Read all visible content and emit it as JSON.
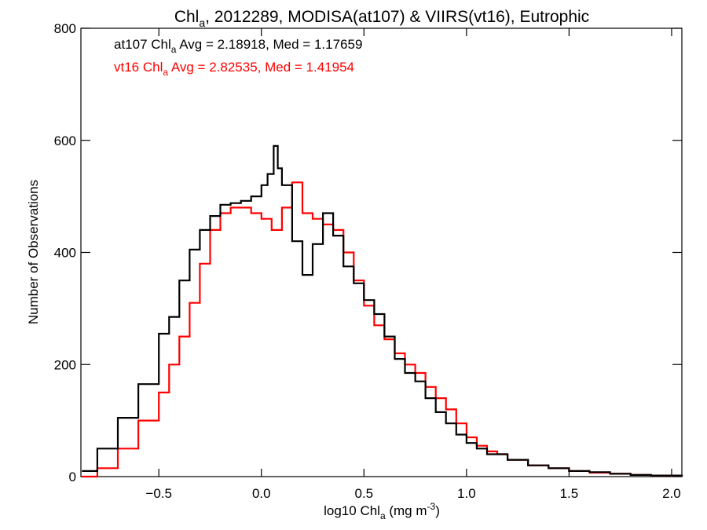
{
  "chart_data": {
    "type": "line",
    "step": true,
    "title": {
      "base": "Chl",
      "sub": "a",
      "rest": ", 2012289, MODISA(at107) & VIIRS(vt16), Eutrophic"
    },
    "xlabel": {
      "base": "log10 Chl",
      "sub": "a",
      "rest": " (mg m",
      "sup": "-3",
      "end": ")"
    },
    "ylabel": "Number of Observations",
    "xlim": [
      -0.88,
      2.05
    ],
    "ylim": [
      0,
      800
    ],
    "x_ticks": [
      -0.5,
      0.0,
      0.5,
      1.0,
      1.5,
      2.0
    ],
    "x_tick_labels": [
      "−0.5",
      "0.0",
      "0.5",
      "1.0",
      "1.5",
      "2.0"
    ],
    "y_ticks": [
      0,
      200,
      400,
      600,
      800
    ],
    "y_tick_labels": [
      "0",
      "200",
      "400",
      "600",
      "800"
    ],
    "grid": false,
    "annotations": [
      {
        "id": "at107",
        "color": "#000000",
        "prefix": "at107 Chl",
        "sub": "a",
        "suffix": " Avg = 2.18918, Med = 1.17659"
      },
      {
        "id": "vt16",
        "color": "#ff0000",
        "prefix": "vt16 Chl",
        "sub": "a",
        "suffix": " Avg = 2.82535, Med = 1.41954"
      }
    ],
    "series": [
      {
        "key": "at107",
        "color": "#000000",
        "x": [
          -0.875,
          -0.8,
          -0.7,
          -0.6,
          -0.5,
          -0.45,
          -0.4,
          -0.35,
          -0.3,
          -0.25,
          -0.2,
          -0.15,
          -0.1,
          -0.05,
          0.0,
          0.03,
          0.06,
          0.08,
          0.1,
          0.15,
          0.2,
          0.25,
          0.3,
          0.35,
          0.4,
          0.45,
          0.5,
          0.55,
          0.6,
          0.65,
          0.7,
          0.75,
          0.8,
          0.85,
          0.9,
          0.95,
          1.0,
          1.05,
          1.1,
          1.2,
          1.3,
          1.4,
          1.5,
          1.6,
          1.7,
          1.8,
          1.9,
          2.05
        ],
        "y": [
          10,
          50,
          105,
          165,
          255,
          285,
          350,
          405,
          440,
          465,
          485,
          488,
          492,
          500,
          520,
          540,
          590,
          550,
          520,
          420,
          360,
          415,
          470,
          430,
          375,
          345,
          315,
          290,
          250,
          210,
          185,
          170,
          140,
          115,
          95,
          75,
          60,
          50,
          40,
          30,
          20,
          15,
          10,
          8,
          5,
          3,
          2,
          0
        ]
      },
      {
        "key": "vt16",
        "color": "#ff0000",
        "x": [
          -0.875,
          -0.8,
          -0.7,
          -0.6,
          -0.5,
          -0.45,
          -0.4,
          -0.35,
          -0.3,
          -0.25,
          -0.2,
          -0.15,
          -0.1,
          -0.05,
          0.0,
          0.05,
          0.1,
          0.15,
          0.2,
          0.25,
          0.3,
          0.35,
          0.4,
          0.45,
          0.5,
          0.55,
          0.6,
          0.65,
          0.7,
          0.75,
          0.8,
          0.85,
          0.9,
          0.95,
          1.0,
          1.05,
          1.1,
          1.15,
          1.2,
          1.3,
          1.4,
          1.5,
          1.6,
          1.7,
          1.8,
          1.9,
          2.05
        ],
        "y": [
          0,
          15,
          50,
          100,
          150,
          200,
          250,
          310,
          380,
          440,
          470,
          480,
          480,
          470,
          460,
          440,
          480,
          525,
          470,
          460,
          450,
          440,
          400,
          350,
          305,
          270,
          245,
          220,
          200,
          185,
          160,
          140,
          120,
          95,
          70,
          55,
          45,
          40,
          30,
          20,
          15,
          10,
          7,
          5,
          3,
          2,
          0
        ]
      }
    ]
  }
}
